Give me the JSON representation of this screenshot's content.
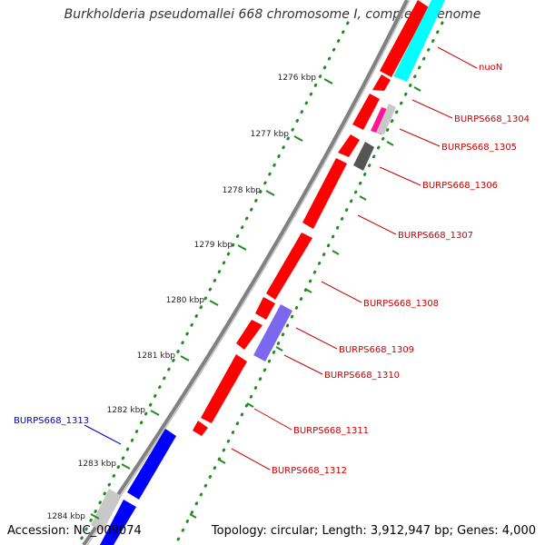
{
  "title": "Burkholderia pseudomallei 668 chromosome I, complete genome",
  "accession": "Accession: NC_009074",
  "summary": "Topology: circular; Length: 3,912,947 bp; Genes: 4,000",
  "colors": {
    "backbone": "#808080",
    "tick": "#228b22",
    "gene_red": "#ff0000",
    "gene_cyan": "#00ffff",
    "gene_blue": "#0000ff",
    "gene_purple": "#7b68ee",
    "gene_magenta": "#ff1493",
    "gene_gray": "#c8c8c8",
    "gene_dark": "#555555",
    "label_red": "#cc0000",
    "label_blue": "#0000cc"
  },
  "ticks": [
    "1276 kbp",
    "1277 kbp",
    "1278 kbp",
    "1279 kbp",
    "1280 kbp",
    "1281 kbp",
    "1282 kbp",
    "1283 kbp",
    "1284 kbp"
  ],
  "gene_labels": [
    {
      "text": "nuoN"
    },
    {
      "text": "BURPS668_1304"
    },
    {
      "text": "BURPS668_1305"
    },
    {
      "text": "BURPS668_1306"
    },
    {
      "text": "BURPS668_1307"
    },
    {
      "text": "BURPS668_1308"
    },
    {
      "text": "BURPS668_1309"
    },
    {
      "text": "BURPS668_1310"
    },
    {
      "text": "BURPS668_1311"
    },
    {
      "text": "BURPS668_1312"
    },
    {
      "text": "BURPS668_1313"
    }
  ]
}
